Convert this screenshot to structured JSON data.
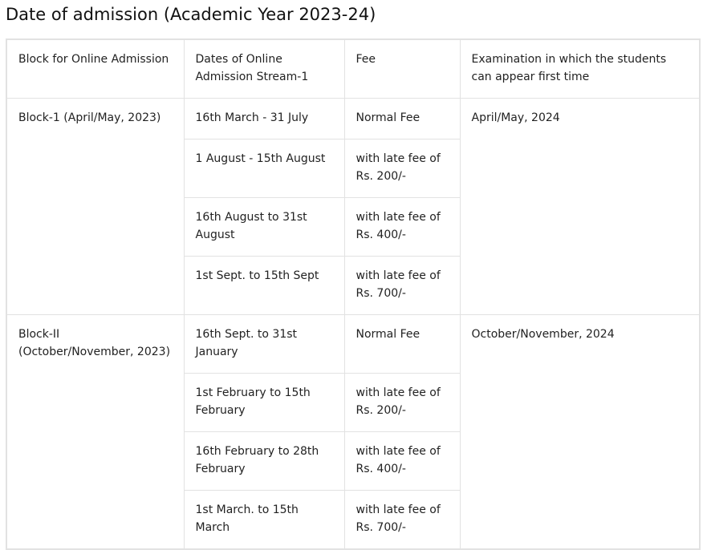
{
  "title": "Date of admission (Academic Year 2023-24)",
  "headers": [
    "Block for Online Admission",
    "Dates of Online Admission Stream-1",
    "Fee",
    "Examination in which the students can appear first time"
  ],
  "blocks": [
    {
      "block": "Block-1 (April/May, 2023)",
      "exam": "April/May, 2024",
      "rows": [
        {
          "dates": "16th March - 31 July",
          "fee": "Normal Fee"
        },
        {
          "dates": "1 August - 15th August",
          "fee": "with late fee of Rs. 200/-"
        },
        {
          "dates": "16th August to 31st August",
          "fee": "with late fee of Rs. 400/-"
        },
        {
          "dates": "1st Sept. to 15th Sept",
          "fee": "with late fee of Rs. 700/-"
        }
      ]
    },
    {
      "block": "Block-II (October/November, 2023)",
      "exam": "October/November, 2024",
      "rows": [
        {
          "dates": "16th Sept. to 31st January",
          "fee": "Normal Fee"
        },
        {
          "dates": "1st February to 15th February",
          "fee": "with late fee of Rs. 200/-"
        },
        {
          "dates": "16th February to 28th February",
          "fee": "with late fee of Rs. 400/-"
        },
        {
          "dates": "1st March. to 15th March",
          "fee": "with late fee of Rs. 700/-"
        }
      ]
    }
  ]
}
